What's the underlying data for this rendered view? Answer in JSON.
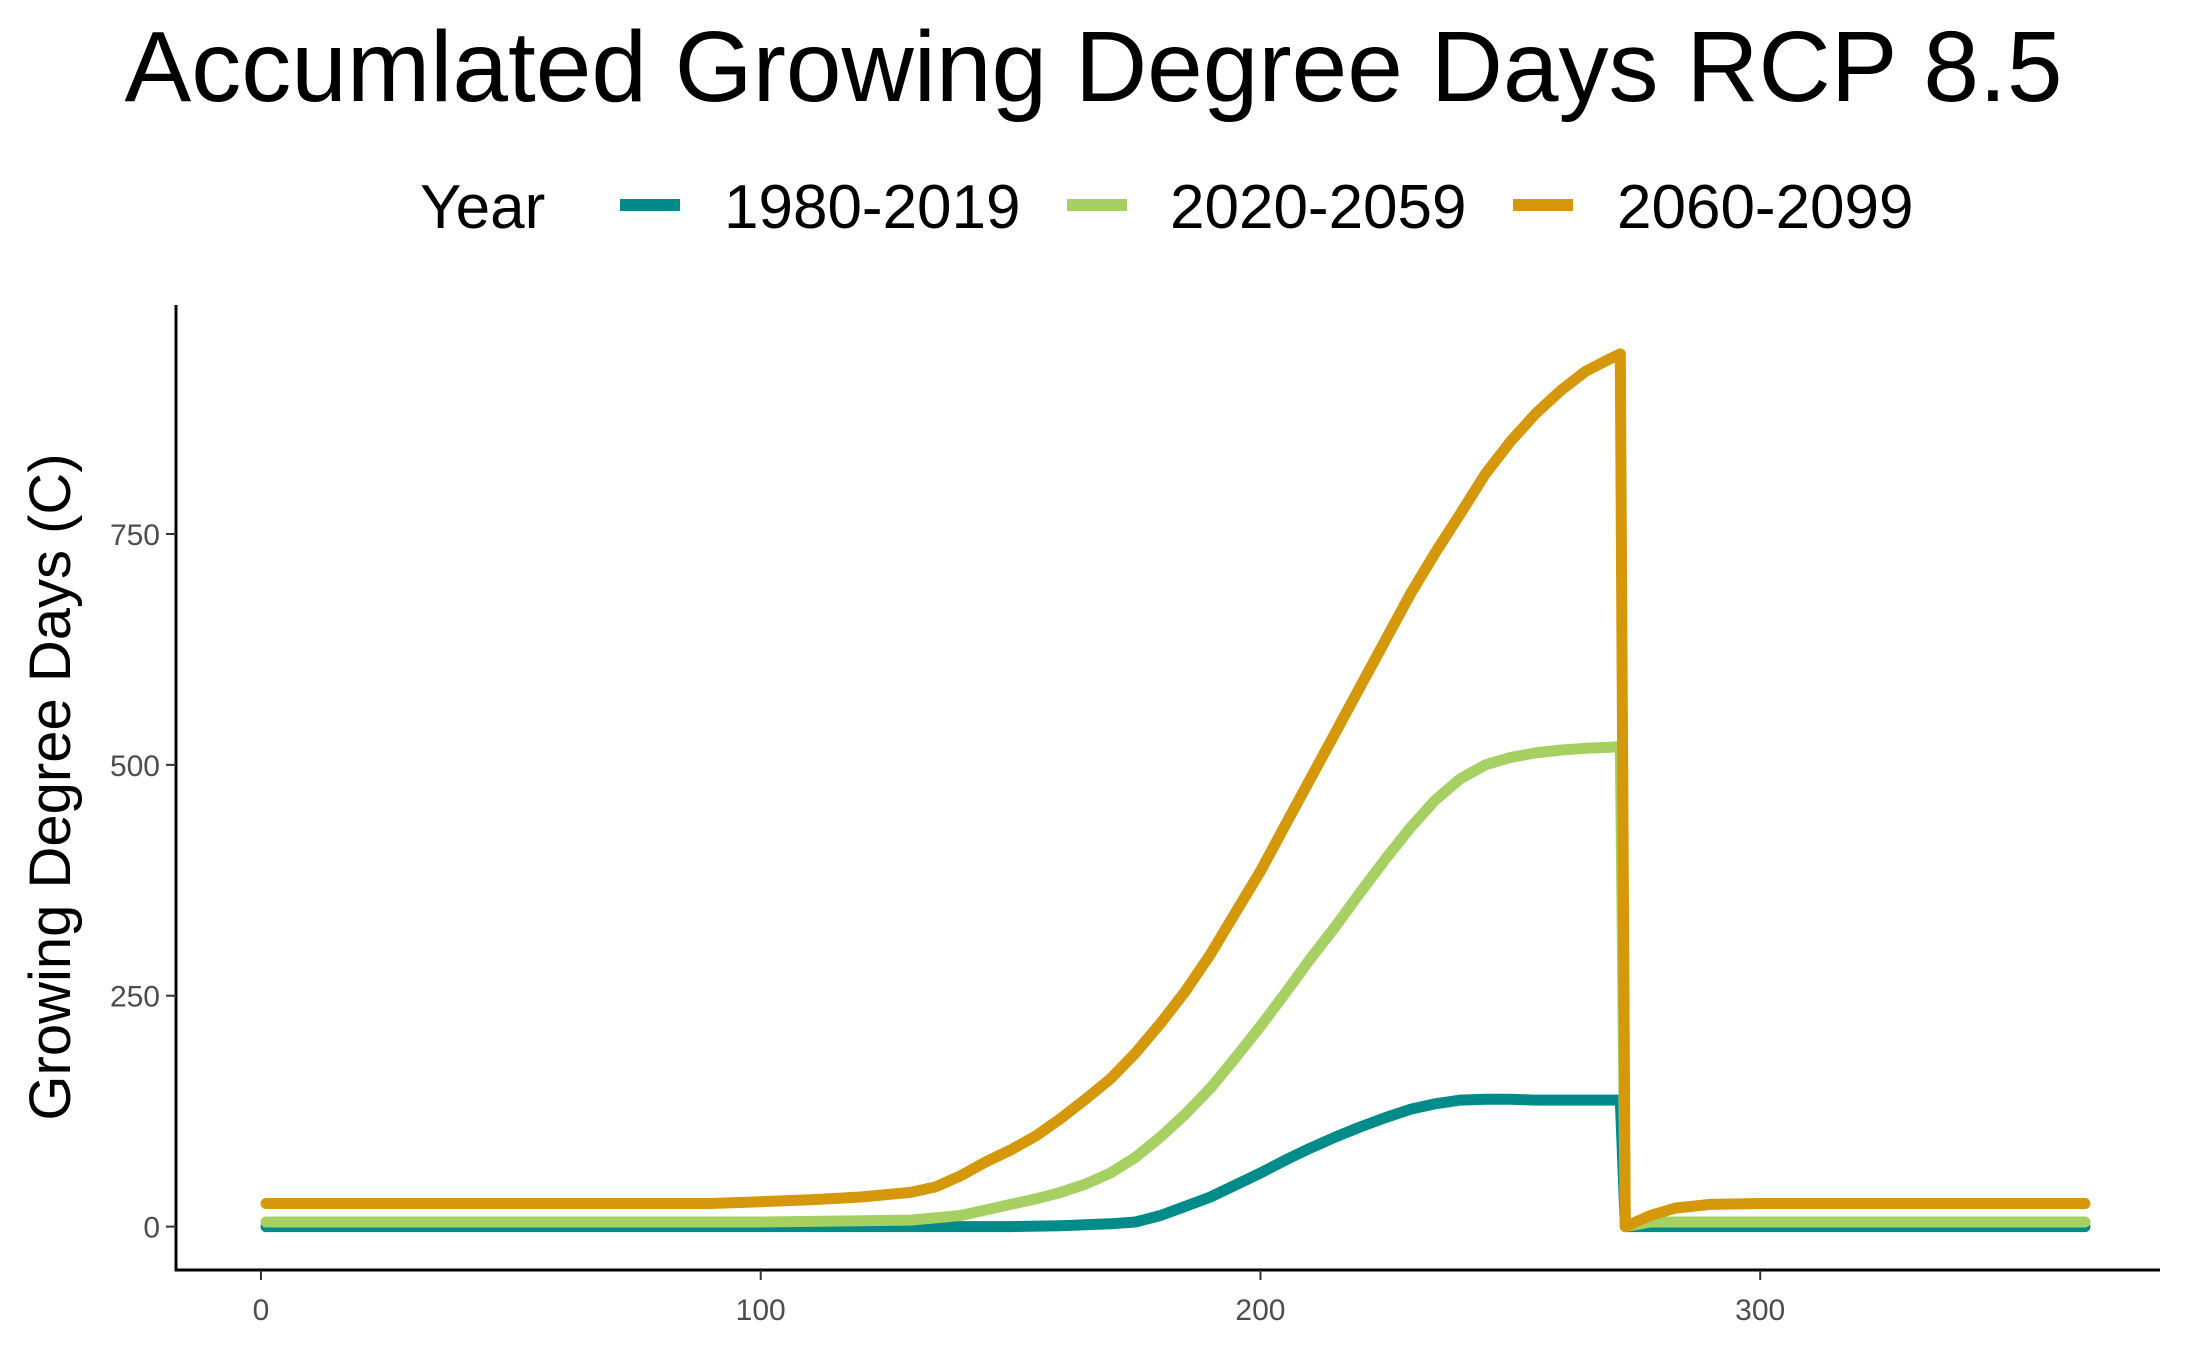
{
  "chart_data": {
    "type": "line",
    "title": "Accumlated Growing Degree Days RCP 8.5",
    "xlabel": "",
    "ylabel": "Growing Degree Days (C)",
    "legend_title": "Year",
    "legend_position": "top",
    "grid": false,
    "xlim": [
      -17,
      380
    ],
    "ylim": [
      -47,
      998
    ],
    "x_ticks": [
      0,
      100,
      200,
      300
    ],
    "y_ticks": [
      0,
      250,
      500,
      750
    ],
    "series": [
      {
        "name": "1980-2019",
        "color": "#008B8B",
        "points": [
          [
            1,
            0
          ],
          [
            150,
            0
          ],
          [
            160,
            1
          ],
          [
            170,
            3
          ],
          [
            175,
            5
          ],
          [
            180,
            12
          ],
          [
            185,
            22
          ],
          [
            190,
            32
          ],
          [
            195,
            45
          ],
          [
            200,
            58
          ],
          [
            205,
            72
          ],
          [
            210,
            85
          ],
          [
            215,
            97
          ],
          [
            220,
            108
          ],
          [
            225,
            118
          ],
          [
            230,
            127
          ],
          [
            235,
            133
          ],
          [
            240,
            137
          ],
          [
            245,
            138
          ],
          [
            250,
            138
          ],
          [
            255,
            137
          ],
          [
            260,
            137
          ],
          [
            265,
            137
          ],
          [
            270,
            137
          ],
          [
            272,
            137
          ],
          [
            273,
            0
          ],
          [
            365,
            0
          ]
        ]
      },
      {
        "name": "2020-2059",
        "color": "#A6D162",
        "points": [
          [
            1,
            5
          ],
          [
            100,
            5
          ],
          [
            130,
            7
          ],
          [
            140,
            12
          ],
          [
            145,
            18
          ],
          [
            150,
            24
          ],
          [
            155,
            30
          ],
          [
            160,
            37
          ],
          [
            165,
            46
          ],
          [
            170,
            58
          ],
          [
            175,
            75
          ],
          [
            180,
            97
          ],
          [
            185,
            122
          ],
          [
            190,
            150
          ],
          [
            195,
            183
          ],
          [
            200,
            217
          ],
          [
            205,
            253
          ],
          [
            210,
            290
          ],
          [
            215,
            325
          ],
          [
            220,
            362
          ],
          [
            225,
            398
          ],
          [
            230,
            432
          ],
          [
            235,
            462
          ],
          [
            240,
            485
          ],
          [
            245,
            500
          ],
          [
            250,
            508
          ],
          [
            255,
            513
          ],
          [
            260,
            516
          ],
          [
            265,
            518
          ],
          [
            270,
            519
          ],
          [
            272,
            520
          ],
          [
            273,
            0
          ],
          [
            278,
            5
          ],
          [
            365,
            5
          ]
        ]
      },
      {
        "name": "2060-2099",
        "color": "#D4980A",
        "points": [
          [
            1,
            25
          ],
          [
            90,
            25
          ],
          [
            100,
            27
          ],
          [
            110,
            29
          ],
          [
            120,
            32
          ],
          [
            130,
            37
          ],
          [
            135,
            43
          ],
          [
            140,
            55
          ],
          [
            145,
            70
          ],
          [
            150,
            83
          ],
          [
            155,
            98
          ],
          [
            160,
            117
          ],
          [
            165,
            138
          ],
          [
            170,
            160
          ],
          [
            175,
            188
          ],
          [
            180,
            220
          ],
          [
            185,
            255
          ],
          [
            190,
            295
          ],
          [
            195,
            340
          ],
          [
            200,
            385
          ],
          [
            205,
            435
          ],
          [
            210,
            485
          ],
          [
            215,
            535
          ],
          [
            220,
            585
          ],
          [
            225,
            635
          ],
          [
            230,
            685
          ],
          [
            235,
            730
          ],
          [
            240,
            772
          ],
          [
            245,
            815
          ],
          [
            250,
            850
          ],
          [
            255,
            880
          ],
          [
            260,
            905
          ],
          [
            265,
            926
          ],
          [
            270,
            940
          ],
          [
            272,
            945
          ],
          [
            273,
            0
          ],
          [
            278,
            12
          ],
          [
            283,
            20
          ],
          [
            290,
            24
          ],
          [
            300,
            25
          ],
          [
            365,
            25
          ]
        ]
      }
    ]
  }
}
